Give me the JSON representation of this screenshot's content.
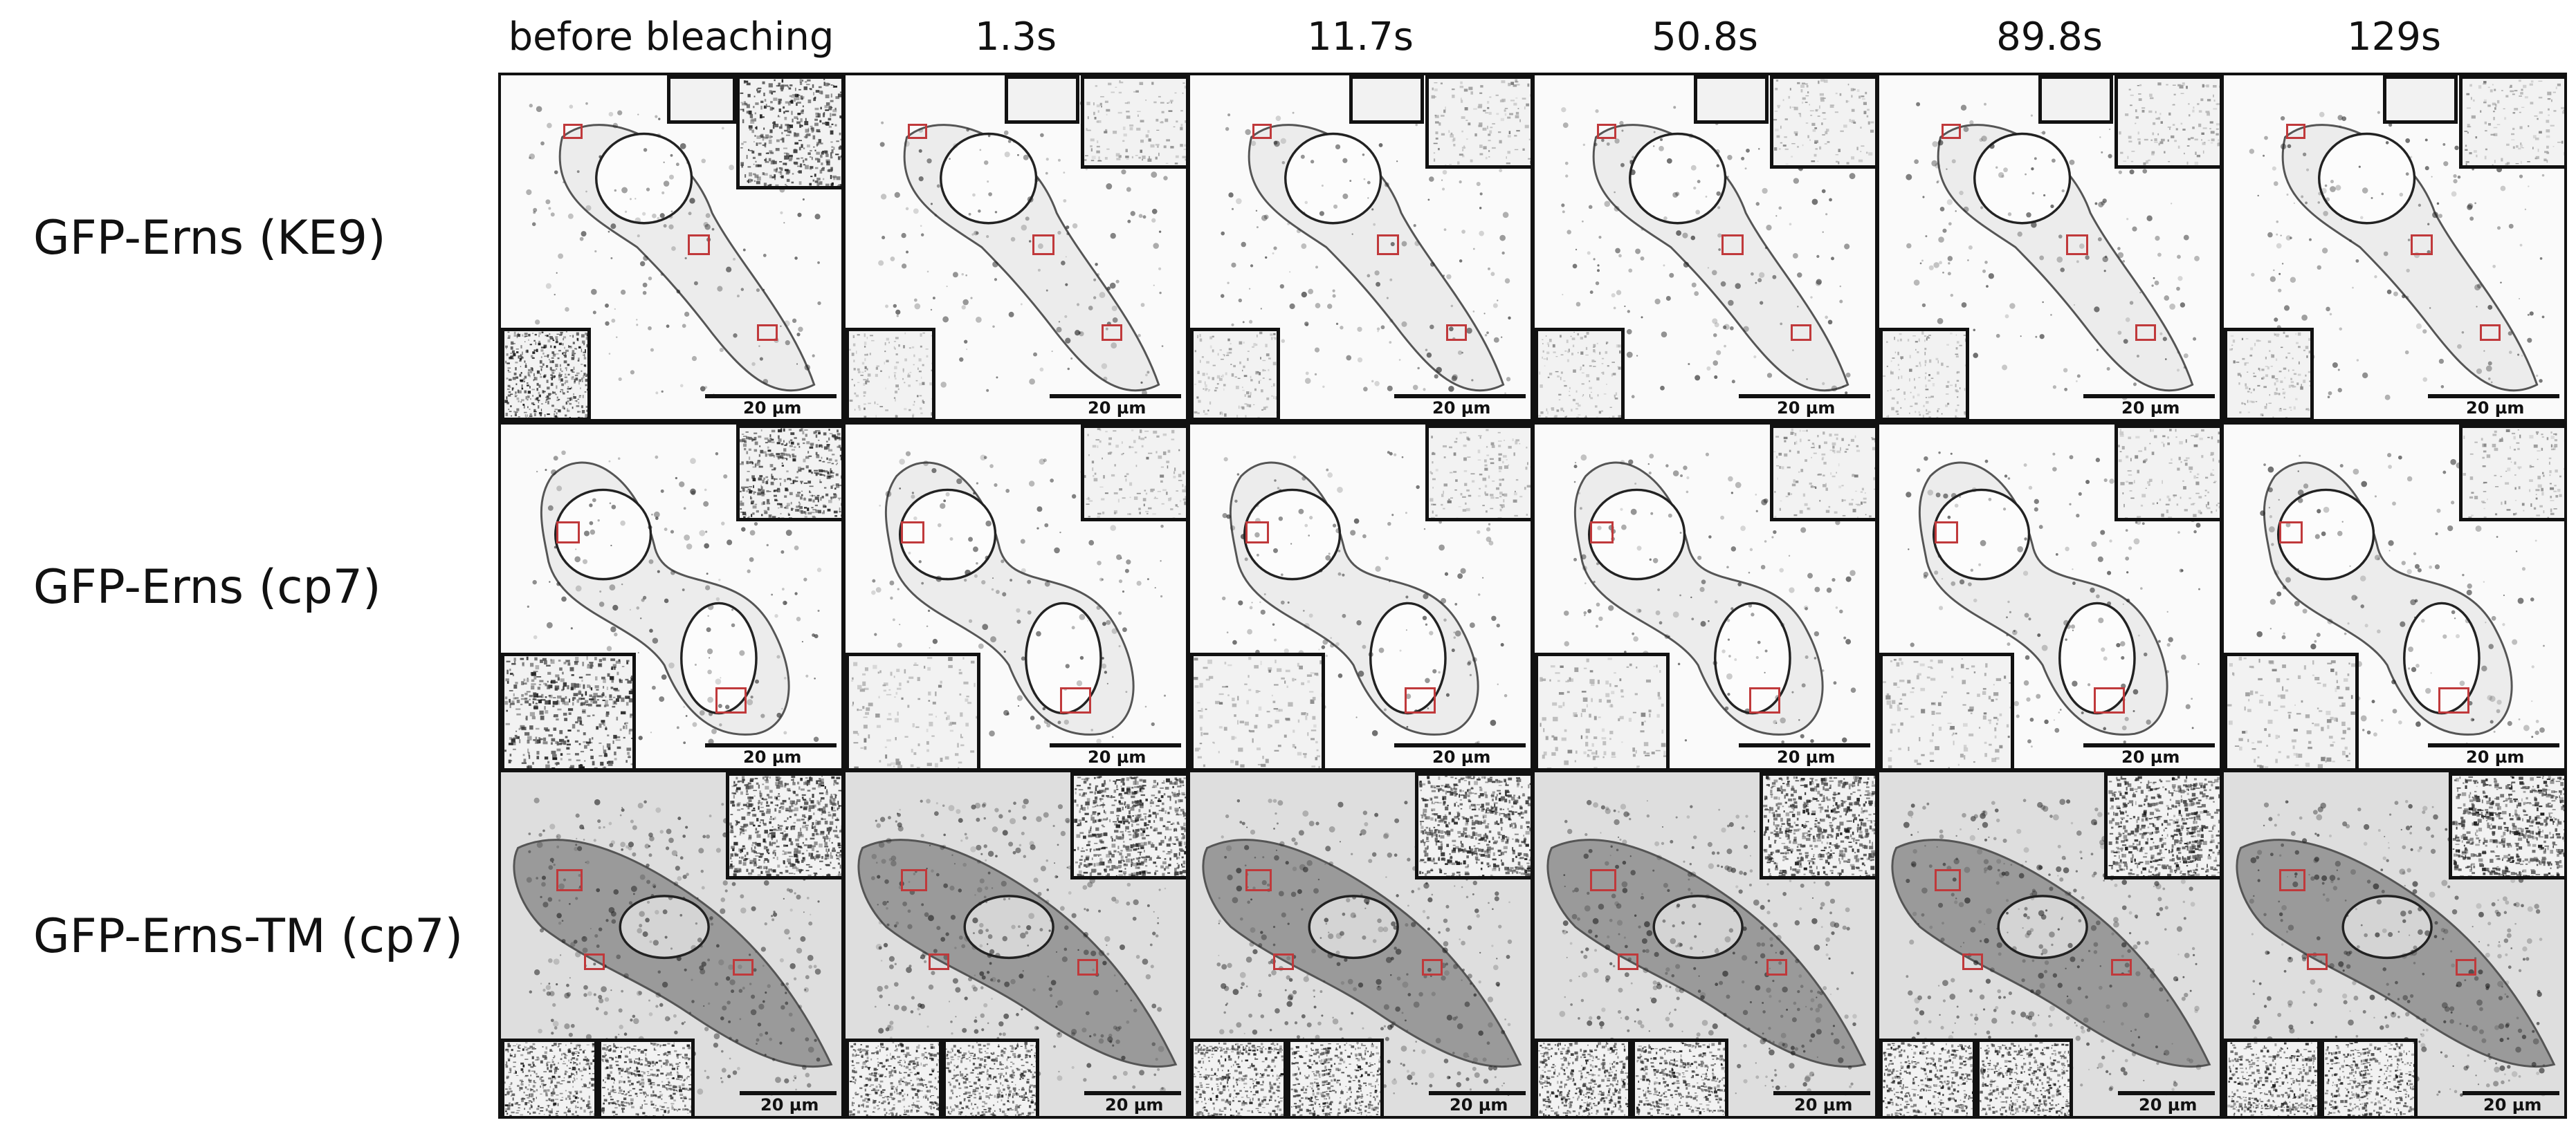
{
  "columns": [
    {
      "label": "before bleaching"
    },
    {
      "label": "1.3s"
    },
    {
      "label": "11.7s"
    },
    {
      "label": "50.8s"
    },
    {
      "label": "89.8s"
    },
    {
      "label": "129s"
    }
  ],
  "rows": [
    {
      "label": "GFP-Erns (KE9)",
      "scale_bar": "20 µm",
      "image": "sparse reticular cell, light background"
    },
    {
      "label": "GFP-Erns (cp7)",
      "scale_bar": "20 µm",
      "image": "two cells with nuclear outline, light background"
    },
    {
      "label": "GFP-Erns-TM (cp7)",
      "scale_bar": "20 µm",
      "image": "elongated cell with dense reticular network, grey background"
    }
  ],
  "colors": {
    "frame": "#111111",
    "roi": "#c0393b"
  }
}
